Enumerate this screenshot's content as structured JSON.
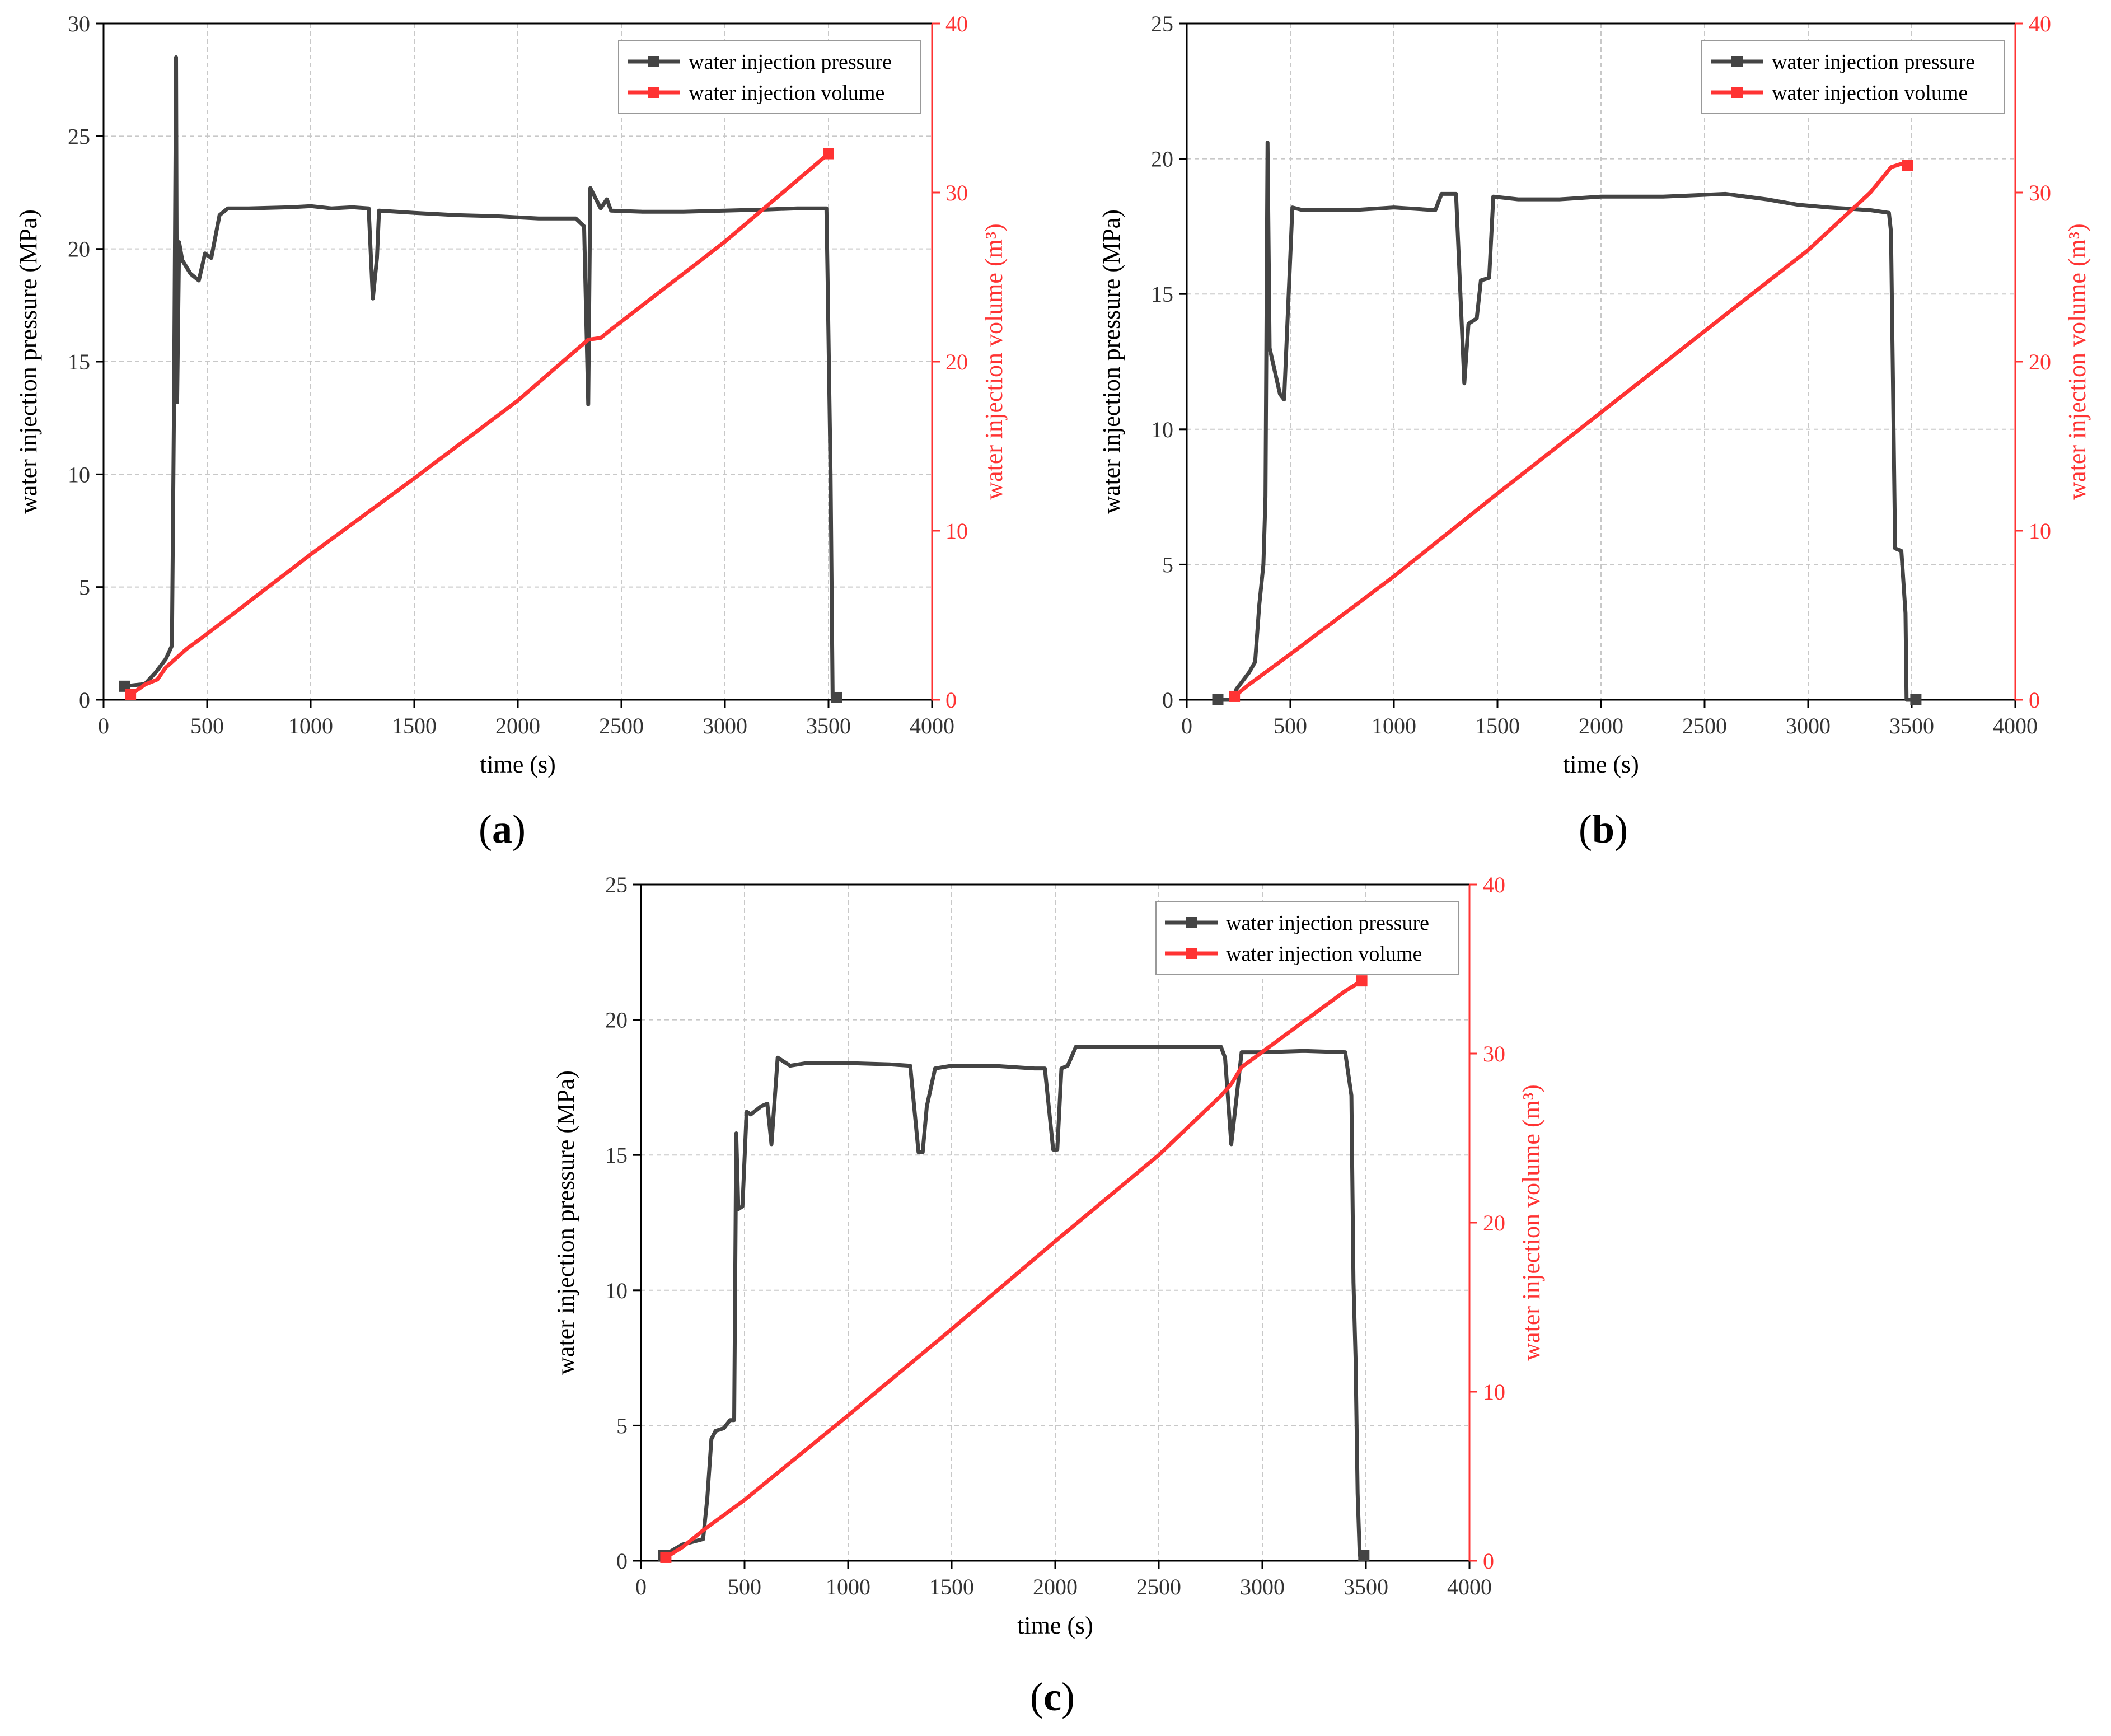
{
  "figure": {
    "panels": [
      {
        "id": "a",
        "caption_letter": "a"
      },
      {
        "id": "b",
        "caption_letter": "b"
      },
      {
        "id": "c",
        "caption_letter": "c"
      }
    ]
  },
  "chart_data": [
    {
      "panel": "a",
      "type": "line",
      "xlabel": "time (s)",
      "ylabel": "water injection pressure (MPa)",
      "y2label": "water injection volume (m³)",
      "xlim": [
        0,
        4000
      ],
      "ylim": [
        0,
        30
      ],
      "y2lim": [
        0,
        40
      ],
      "xticks": [
        0,
        500,
        1000,
        1500,
        2000,
        2500,
        3000,
        3500,
        4000
      ],
      "yticks": [
        0,
        5,
        10,
        15,
        20,
        25,
        30
      ],
      "y2ticks": [
        0,
        10,
        20,
        30,
        40
      ],
      "grid": true,
      "legend": "top-right",
      "series": [
        {
          "name": "water injection pressure",
          "color": "#444444",
          "axis": "left",
          "points": [
            [
              100,
              0.6
            ],
            [
              200,
              0.7
            ],
            [
              250,
              1.2
            ],
            [
              300,
              1.8
            ],
            [
              330,
              2.4
            ],
            [
              340,
              13
            ],
            [
              350,
              28.5
            ],
            [
              355,
              13.2
            ],
            [
              365,
              20.3
            ],
            [
              380,
              19.5
            ],
            [
              420,
              18.9
            ],
            [
              460,
              18.6
            ],
            [
              490,
              19.8
            ],
            [
              520,
              19.6
            ],
            [
              560,
              21.5
            ],
            [
              600,
              21.8
            ],
            [
              700,
              21.8
            ],
            [
              900,
              21.85
            ],
            [
              1000,
              21.9
            ],
            [
              1100,
              21.8
            ],
            [
              1200,
              21.85
            ],
            [
              1280,
              21.8
            ],
            [
              1300,
              17.8
            ],
            [
              1320,
              19.6
            ],
            [
              1330,
              21.7
            ],
            [
              1500,
              21.6
            ],
            [
              1700,
              21.5
            ],
            [
              1900,
              21.45
            ],
            [
              2100,
              21.35
            ],
            [
              2280,
              21.35
            ],
            [
              2320,
              21.0
            ],
            [
              2340,
              13.1
            ],
            [
              2350,
              22.7
            ],
            [
              2400,
              21.8
            ],
            [
              2430,
              22.2
            ],
            [
              2450,
              21.7
            ],
            [
              2600,
              21.65
            ],
            [
              2800,
              21.65
            ],
            [
              3000,
              21.7
            ],
            [
              3200,
              21.75
            ],
            [
              3350,
              21.8
            ],
            [
              3490,
              21.8
            ],
            [
              3495,
              19
            ],
            [
              3510,
              10
            ],
            [
              3520,
              0.1
            ],
            [
              3540,
              0.1
            ]
          ]
        },
        {
          "name": "water injection volume",
          "color": "#ff3333",
          "axis": "right",
          "points": [
            [
              130,
              0.3
            ],
            [
              200,
              0.9
            ],
            [
              260,
              1.2
            ],
            [
              300,
              1.9
            ],
            [
              400,
              3.0
            ],
            [
              500,
              3.9
            ],
            [
              1000,
              8.6
            ],
            [
              1500,
              13.1
            ],
            [
              2000,
              17.7
            ],
            [
              2340,
              21.3
            ],
            [
              2400,
              21.4
            ],
            [
              2450,
              21.9
            ],
            [
              3000,
              27.1
            ],
            [
              3500,
              32.3
            ]
          ]
        }
      ]
    },
    {
      "panel": "b",
      "type": "line",
      "xlabel": "time (s)",
      "ylabel": "water injection pressure (MPa)",
      "y2label": "water injection volume (m³)",
      "xlim": [
        0,
        4000
      ],
      "ylim": [
        0,
        25
      ],
      "y2lim": [
        0,
        40
      ],
      "xticks": [
        0,
        500,
        1000,
        1500,
        2000,
        2500,
        3000,
        3500,
        4000
      ],
      "yticks": [
        0,
        5,
        10,
        15,
        20,
        25
      ],
      "y2ticks": [
        0,
        10,
        20,
        30,
        40
      ],
      "grid": true,
      "legend": "top-right",
      "series": [
        {
          "name": "water injection pressure",
          "color": "#444444",
          "axis": "left",
          "points": [
            [
              150,
              0
            ],
            [
              220,
              0
            ],
            [
              240,
              0.4
            ],
            [
              300,
              1.0
            ],
            [
              330,
              1.4
            ],
            [
              350,
              3.5
            ],
            [
              370,
              5
            ],
            [
              380,
              7.5
            ],
            [
              390,
              20.6
            ],
            [
              400,
              13
            ],
            [
              450,
              11.3
            ],
            [
              470,
              11.1
            ],
            [
              510,
              18.2
            ],
            [
              560,
              18.1
            ],
            [
              800,
              18.1
            ],
            [
              1000,
              18.2
            ],
            [
              1200,
              18.1
            ],
            [
              1230,
              18.7
            ],
            [
              1300,
              18.7
            ],
            [
              1340,
              11.7
            ],
            [
              1360,
              13.9
            ],
            [
              1400,
              14.1
            ],
            [
              1420,
              15.5
            ],
            [
              1460,
              15.6
            ],
            [
              1480,
              18.6
            ],
            [
              1600,
              18.5
            ],
            [
              1800,
              18.5
            ],
            [
              2000,
              18.6
            ],
            [
              2300,
              18.6
            ],
            [
              2600,
              18.7
            ],
            [
              2800,
              18.5
            ],
            [
              2950,
              18.3
            ],
            [
              3100,
              18.2
            ],
            [
              3300,
              18.1
            ],
            [
              3390,
              18.0
            ],
            [
              3400,
              17.3
            ],
            [
              3420,
              5.6
            ],
            [
              3450,
              5.5
            ],
            [
              3470,
              3.2
            ],
            [
              3475,
              0
            ],
            [
              3520,
              0
            ]
          ]
        },
        {
          "name": "water injection volume",
          "color": "#ff3333",
          "axis": "right",
          "points": [
            [
              230,
              0.2
            ],
            [
              300,
              0.9
            ],
            [
              500,
              2.7
            ],
            [
              1000,
              7.3
            ],
            [
              1500,
              12.2
            ],
            [
              2000,
              17.0
            ],
            [
              2500,
              21.8
            ],
            [
              3000,
              26.6
            ],
            [
              3300,
              30.0
            ],
            [
              3400,
              31.5
            ],
            [
              3450,
              31.7
            ],
            [
              3480,
              31.6
            ]
          ]
        }
      ]
    },
    {
      "panel": "c",
      "type": "line",
      "xlabel": "time (s)",
      "ylabel": "water injection pressure (MPa)",
      "y2label": "water injection volume (m³)",
      "xlim": [
        0,
        4000
      ],
      "ylim": [
        0,
        25
      ],
      "y2lim": [
        0,
        40
      ],
      "xticks": [
        0,
        500,
        1000,
        1500,
        2000,
        2500,
        3000,
        3500,
        4000
      ],
      "yticks": [
        0,
        5,
        10,
        15,
        20,
        25
      ],
      "y2ticks": [
        0,
        10,
        20,
        30,
        40
      ],
      "grid": true,
      "legend": "top-right",
      "series": [
        {
          "name": "water injection pressure",
          "color": "#444444",
          "axis": "left",
          "points": [
            [
              110,
              0.2
            ],
            [
              200,
              0.6
            ],
            [
              300,
              0.8
            ],
            [
              320,
              2.3
            ],
            [
              340,
              4.5
            ],
            [
              360,
              4.8
            ],
            [
              400,
              4.9
            ],
            [
              430,
              5.2
            ],
            [
              450,
              5.2
            ],
            [
              460,
              15.8
            ],
            [
              470,
              13
            ],
            [
              490,
              13.1
            ],
            [
              510,
              16.6
            ],
            [
              530,
              16.5
            ],
            [
              580,
              16.8
            ],
            [
              610,
              16.9
            ],
            [
              630,
              15.4
            ],
            [
              660,
              18.6
            ],
            [
              720,
              18.3
            ],
            [
              800,
              18.4
            ],
            [
              1000,
              18.4
            ],
            [
              1200,
              18.35
            ],
            [
              1300,
              18.3
            ],
            [
              1340,
              15.1
            ],
            [
              1360,
              15.1
            ],
            [
              1380,
              16.8
            ],
            [
              1420,
              18.2
            ],
            [
              1500,
              18.3
            ],
            [
              1700,
              18.3
            ],
            [
              1900,
              18.2
            ],
            [
              1950,
              18.2
            ],
            [
              1990,
              15.2
            ],
            [
              2010,
              15.2
            ],
            [
              2030,
              18.2
            ],
            [
              2060,
              18.3
            ],
            [
              2100,
              19.0
            ],
            [
              2300,
              19.0
            ],
            [
              2500,
              19.0
            ],
            [
              2800,
              19.0
            ],
            [
              2820,
              18.6
            ],
            [
              2850,
              15.4
            ],
            [
              2900,
              18.8
            ],
            [
              3000,
              18.8
            ],
            [
              3200,
              18.85
            ],
            [
              3400,
              18.8
            ],
            [
              3430,
              17.2
            ],
            [
              3440,
              10.3
            ],
            [
              3450,
              7.5
            ],
            [
              3460,
              2.5
            ],
            [
              3470,
              0.2
            ],
            [
              3490,
              0.2
            ]
          ]
        },
        {
          "name": "water injection volume",
          "color": "#ff3333",
          "axis": "right",
          "points": [
            [
              120,
              0.2
            ],
            [
              200,
              0.8
            ],
            [
              300,
              1.8
            ],
            [
              500,
              3.6
            ],
            [
              1000,
              8.6
            ],
            [
              1500,
              13.7
            ],
            [
              2000,
              18.9
            ],
            [
              2500,
              24.0
            ],
            [
              2800,
              27.5
            ],
            [
              2850,
              28.2
            ],
            [
              2900,
              29.2
            ],
            [
              3000,
              30.1
            ],
            [
              3200,
              31.9
            ],
            [
              3400,
              33.7
            ],
            [
              3480,
              34.3
            ]
          ]
        }
      ]
    }
  ]
}
